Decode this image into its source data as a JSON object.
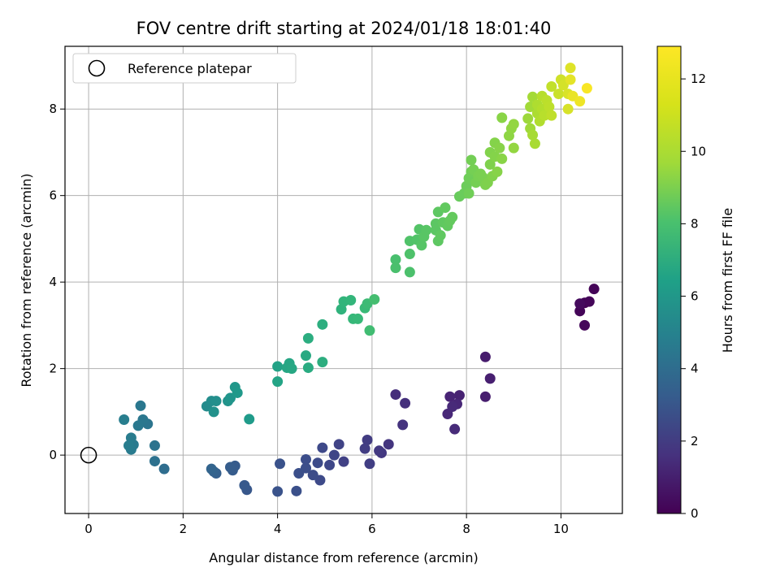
{
  "chart_data": {
    "type": "scatter",
    "title": "FOV centre drift starting at 2024/01/18 18:01:40",
    "xlabel": "Angular distance from reference (arcmin)",
    "ylabel": "Rotation from reference (arcmin)",
    "xlim": [
      -0.5,
      11.3
    ],
    "ylim": [
      -1.35,
      9.45
    ],
    "x_ticks": [
      0,
      2,
      4,
      6,
      8,
      10
    ],
    "y_ticks": [
      0,
      2,
      4,
      6,
      8
    ],
    "grid": true,
    "legend": {
      "placement": "top-left",
      "entries": [
        "Reference platepar"
      ]
    },
    "colorbar": {
      "label": "Hours from first FF file",
      "range": [
        0,
        12.9
      ],
      "ticks": [
        0,
        2,
        4,
        6,
        8,
        10,
        12
      ],
      "colormap": "viridis"
    },
    "reference_point": {
      "x": 0,
      "y": 0
    },
    "series": [
      {
        "marker": "filled-circle",
        "points": [
          {
            "x": 10.5,
            "y": 3.52,
            "h": 0.05
          },
          {
            "x": 10.7,
            "y": 3.84,
            "h": 0.1
          },
          {
            "x": 10.4,
            "y": 3.33,
            "h": 0.15
          },
          {
            "x": 10.6,
            "y": 3.55,
            "h": 0.2
          },
          {
            "x": 10.5,
            "y": 3.0,
            "h": 0.25
          },
          {
            "x": 10.4,
            "y": 3.5,
            "h": 0.35
          },
          {
            "x": 8.4,
            "y": 2.27,
            "h": 1.0
          },
          {
            "x": 8.4,
            "y": 1.35,
            "h": 1.05
          },
          {
            "x": 8.5,
            "y": 1.77,
            "h": 1.1
          },
          {
            "x": 7.85,
            "y": 1.38,
            "h": 1.2
          },
          {
            "x": 7.65,
            "y": 1.35,
            "h": 1.3
          },
          {
            "x": 7.8,
            "y": 1.18,
            "h": 1.4
          },
          {
            "x": 7.6,
            "y": 0.95,
            "h": 1.45
          },
          {
            "x": 7.7,
            "y": 1.12,
            "h": 1.5
          },
          {
            "x": 7.75,
            "y": 0.6,
            "h": 1.55
          },
          {
            "x": 6.5,
            "y": 1.4,
            "h": 1.7
          },
          {
            "x": 6.7,
            "y": 1.2,
            "h": 1.8
          },
          {
            "x": 6.65,
            "y": 0.7,
            "h": 1.9
          },
          {
            "x": 6.35,
            "y": 0.25,
            "h": 2.0
          },
          {
            "x": 6.2,
            "y": 0.05,
            "h": 2.1
          },
          {
            "x": 6.15,
            "y": 0.1,
            "h": 2.15
          },
          {
            "x": 5.9,
            "y": 0.35,
            "h": 2.3
          },
          {
            "x": 5.85,
            "y": 0.15,
            "h": 2.35
          },
          {
            "x": 5.95,
            "y": -0.2,
            "h": 2.4
          },
          {
            "x": 5.4,
            "y": -0.15,
            "h": 2.5
          },
          {
            "x": 5.3,
            "y": 0.25,
            "h": 2.6
          },
          {
            "x": 5.2,
            "y": 0.0,
            "h": 2.7
          },
          {
            "x": 5.1,
            "y": -0.23,
            "h": 2.8
          },
          {
            "x": 4.95,
            "y": 0.17,
            "h": 2.85
          },
          {
            "x": 4.9,
            "y": -0.58,
            "h": 2.9
          },
          {
            "x": 4.85,
            "y": -0.18,
            "h": 2.95
          },
          {
            "x": 4.75,
            "y": -0.46,
            "h": 3.0
          },
          {
            "x": 4.6,
            "y": -0.1,
            "h": 3.05
          },
          {
            "x": 4.6,
            "y": -0.3,
            "h": 3.1
          },
          {
            "x": 4.45,
            "y": -0.42,
            "h": 3.15
          },
          {
            "x": 4.4,
            "y": -0.83,
            "h": 3.2
          },
          {
            "x": 4.05,
            "y": -0.2,
            "h": 3.3
          },
          {
            "x": 4.0,
            "y": -0.84,
            "h": 3.35
          },
          {
            "x": 3.35,
            "y": -0.8,
            "h": 3.5
          },
          {
            "x": 3.3,
            "y": -0.7,
            "h": 3.6
          },
          {
            "x": 3.1,
            "y": -0.25,
            "h": 3.7
          },
          {
            "x": 3.05,
            "y": -0.35,
            "h": 3.75
          },
          {
            "x": 3.0,
            "y": -0.28,
            "h": 3.8
          },
          {
            "x": 2.7,
            "y": -0.42,
            "h": 3.9
          },
          {
            "x": 2.65,
            "y": -0.38,
            "h": 4.0
          },
          {
            "x": 2.6,
            "y": -0.32,
            "h": 4.1
          },
          {
            "x": 1.6,
            "y": -0.32,
            "h": 4.6
          },
          {
            "x": 1.4,
            "y": -0.14,
            "h": 4.8
          },
          {
            "x": 1.4,
            "y": 0.22,
            "h": 4.9
          },
          {
            "x": 1.25,
            "y": 0.72,
            "h": 5.0
          },
          {
            "x": 1.15,
            "y": 0.82,
            "h": 5.1
          },
          {
            "x": 1.1,
            "y": 1.14,
            "h": 5.15
          },
          {
            "x": 1.05,
            "y": 0.68,
            "h": 5.2
          },
          {
            "x": 0.95,
            "y": 0.24,
            "h": 5.3
          },
          {
            "x": 0.9,
            "y": 0.13,
            "h": 5.35
          },
          {
            "x": 0.9,
            "y": 0.4,
            "h": 5.4
          },
          {
            "x": 0.85,
            "y": 0.22,
            "h": 5.45
          },
          {
            "x": 0.75,
            "y": 0.82,
            "h": 5.5
          },
          {
            "x": 2.5,
            "y": 1.13,
            "h": 6.2
          },
          {
            "x": 2.6,
            "y": 1.25,
            "h": 6.3
          },
          {
            "x": 2.7,
            "y": 1.25,
            "h": 6.4
          },
          {
            "x": 2.65,
            "y": 1.0,
            "h": 6.5
          },
          {
            "x": 2.95,
            "y": 1.25,
            "h": 6.6
          },
          {
            "x": 3.0,
            "y": 1.32,
            "h": 6.7
          },
          {
            "x": 3.1,
            "y": 1.57,
            "h": 6.8
          },
          {
            "x": 3.15,
            "y": 1.44,
            "h": 6.9
          },
          {
            "x": 3.4,
            "y": 0.83,
            "h": 7.0
          },
          {
            "x": 4.0,
            "y": 2.05,
            "h": 7.4
          },
          {
            "x": 4.0,
            "y": 1.7,
            "h": 7.5
          },
          {
            "x": 4.2,
            "y": 2.02,
            "h": 7.6
          },
          {
            "x": 4.25,
            "y": 2.12,
            "h": 7.65
          },
          {
            "x": 4.3,
            "y": 2.0,
            "h": 7.7
          },
          {
            "x": 4.6,
            "y": 2.3,
            "h": 7.8
          },
          {
            "x": 4.65,
            "y": 2.02,
            "h": 7.9
          },
          {
            "x": 4.65,
            "y": 2.7,
            "h": 8.0
          },
          {
            "x": 4.95,
            "y": 2.15,
            "h": 8.05
          },
          {
            "x": 4.95,
            "y": 3.02,
            "h": 8.1
          },
          {
            "x": 5.35,
            "y": 3.37,
            "h": 8.3
          },
          {
            "x": 5.4,
            "y": 3.55,
            "h": 8.4
          },
          {
            "x": 5.55,
            "y": 3.58,
            "h": 8.5
          },
          {
            "x": 5.6,
            "y": 3.15,
            "h": 8.6
          },
          {
            "x": 5.7,
            "y": 3.15,
            "h": 8.65
          },
          {
            "x": 5.85,
            "y": 3.4,
            "h": 8.7
          },
          {
            "x": 5.9,
            "y": 3.5,
            "h": 8.8
          },
          {
            "x": 5.95,
            "y": 2.88,
            "h": 8.9
          },
          {
            "x": 6.05,
            "y": 3.6,
            "h": 9.0
          },
          {
            "x": 6.5,
            "y": 4.52,
            "h": 9.1
          },
          {
            "x": 6.5,
            "y": 4.33,
            "h": 9.15
          },
          {
            "x": 6.8,
            "y": 4.23,
            "h": 9.2
          },
          {
            "x": 6.8,
            "y": 4.65,
            "h": 9.25
          },
          {
            "x": 6.8,
            "y": 4.95,
            "h": 9.3
          },
          {
            "x": 6.95,
            "y": 4.98,
            "h": 9.35
          },
          {
            "x": 7.0,
            "y": 5.22,
            "h": 9.4
          },
          {
            "x": 7.05,
            "y": 4.85,
            "h": 9.45
          },
          {
            "x": 7.1,
            "y": 5.05,
            "h": 9.5
          },
          {
            "x": 7.15,
            "y": 5.2,
            "h": 9.5
          },
          {
            "x": 7.35,
            "y": 5.2,
            "h": 9.6
          },
          {
            "x": 7.35,
            "y": 5.35,
            "h": 9.6
          },
          {
            "x": 7.4,
            "y": 5.62,
            "h": 9.65
          },
          {
            "x": 7.4,
            "y": 4.95,
            "h": 9.65
          },
          {
            "x": 7.45,
            "y": 5.08,
            "h": 9.7
          },
          {
            "x": 7.5,
            "y": 5.38,
            "h": 9.7
          },
          {
            "x": 7.55,
            "y": 5.72,
            "h": 9.75
          },
          {
            "x": 7.6,
            "y": 5.3,
            "h": 9.75
          },
          {
            "x": 7.65,
            "y": 5.42,
            "h": 9.8
          },
          {
            "x": 7.7,
            "y": 5.5,
            "h": 9.8
          },
          {
            "x": 7.85,
            "y": 5.98,
            "h": 9.9
          },
          {
            "x": 7.95,
            "y": 6.05,
            "h": 9.95
          },
          {
            "x": 8.0,
            "y": 6.22,
            "h": 10.0
          },
          {
            "x": 8.05,
            "y": 6.4,
            "h": 10.05
          },
          {
            "x": 8.05,
            "y": 6.05,
            "h": 10.1
          },
          {
            "x": 8.1,
            "y": 6.55,
            "h": 10.1
          },
          {
            "x": 8.1,
            "y": 6.82,
            "h": 10.15
          },
          {
            "x": 8.15,
            "y": 6.6,
            "h": 10.2
          },
          {
            "x": 8.2,
            "y": 6.3,
            "h": 10.2
          },
          {
            "x": 8.25,
            "y": 6.45,
            "h": 10.25
          },
          {
            "x": 8.3,
            "y": 6.5,
            "h": 10.3
          },
          {
            "x": 8.35,
            "y": 6.42,
            "h": 10.3
          },
          {
            "x": 8.4,
            "y": 6.25,
            "h": 10.35
          },
          {
            "x": 8.45,
            "y": 6.3,
            "h": 10.4
          },
          {
            "x": 8.5,
            "y": 6.72,
            "h": 10.4
          },
          {
            "x": 8.5,
            "y": 7.0,
            "h": 10.45
          },
          {
            "x": 8.55,
            "y": 6.45,
            "h": 10.45
          },
          {
            "x": 8.6,
            "y": 6.9,
            "h": 10.5
          },
          {
            "x": 8.6,
            "y": 7.22,
            "h": 10.5
          },
          {
            "x": 8.65,
            "y": 6.55,
            "h": 10.55
          },
          {
            "x": 8.7,
            "y": 7.1,
            "h": 10.55
          },
          {
            "x": 8.75,
            "y": 6.85,
            "h": 10.6
          },
          {
            "x": 8.75,
            "y": 7.8,
            "h": 10.6
          },
          {
            "x": 8.9,
            "y": 7.38,
            "h": 10.7
          },
          {
            "x": 8.95,
            "y": 7.55,
            "h": 10.75
          },
          {
            "x": 9.0,
            "y": 7.1,
            "h": 10.8
          },
          {
            "x": 9.0,
            "y": 7.65,
            "h": 10.8
          },
          {
            "x": 9.3,
            "y": 7.78,
            "h": 11.0
          },
          {
            "x": 9.35,
            "y": 7.55,
            "h": 11.05
          },
          {
            "x": 9.35,
            "y": 8.05,
            "h": 11.1
          },
          {
            "x": 9.4,
            "y": 8.28,
            "h": 11.15
          },
          {
            "x": 9.4,
            "y": 7.4,
            "h": 11.2
          },
          {
            "x": 9.45,
            "y": 7.2,
            "h": 11.25
          },
          {
            "x": 9.5,
            "y": 7.9,
            "h": 11.3
          },
          {
            "x": 9.5,
            "y": 8.1,
            "h": 11.35
          },
          {
            "x": 9.55,
            "y": 7.72,
            "h": 11.4
          },
          {
            "x": 9.6,
            "y": 8.0,
            "h": 11.45
          },
          {
            "x": 9.6,
            "y": 8.3,
            "h": 11.5
          },
          {
            "x": 9.65,
            "y": 7.85,
            "h": 11.55
          },
          {
            "x": 9.7,
            "y": 8.2,
            "h": 11.6
          },
          {
            "x": 9.75,
            "y": 8.05,
            "h": 11.65
          },
          {
            "x": 9.8,
            "y": 7.85,
            "h": 11.7
          },
          {
            "x": 9.8,
            "y": 8.52,
            "h": 11.75
          },
          {
            "x": 9.95,
            "y": 8.35,
            "h": 11.9
          },
          {
            "x": 10.0,
            "y": 8.68,
            "h": 12.0
          },
          {
            "x": 10.05,
            "y": 8.55,
            "h": 12.1
          },
          {
            "x": 10.15,
            "y": 8.0,
            "h": 12.15
          },
          {
            "x": 10.15,
            "y": 8.35,
            "h": 12.2
          },
          {
            "x": 10.2,
            "y": 8.95,
            "h": 12.3
          },
          {
            "x": 10.2,
            "y": 8.68,
            "h": 12.4
          },
          {
            "x": 10.25,
            "y": 8.3,
            "h": 12.5
          },
          {
            "x": 10.4,
            "y": 8.18,
            "h": 12.6
          },
          {
            "x": 10.55,
            "y": 8.48,
            "h": 12.8
          }
        ]
      }
    ]
  }
}
